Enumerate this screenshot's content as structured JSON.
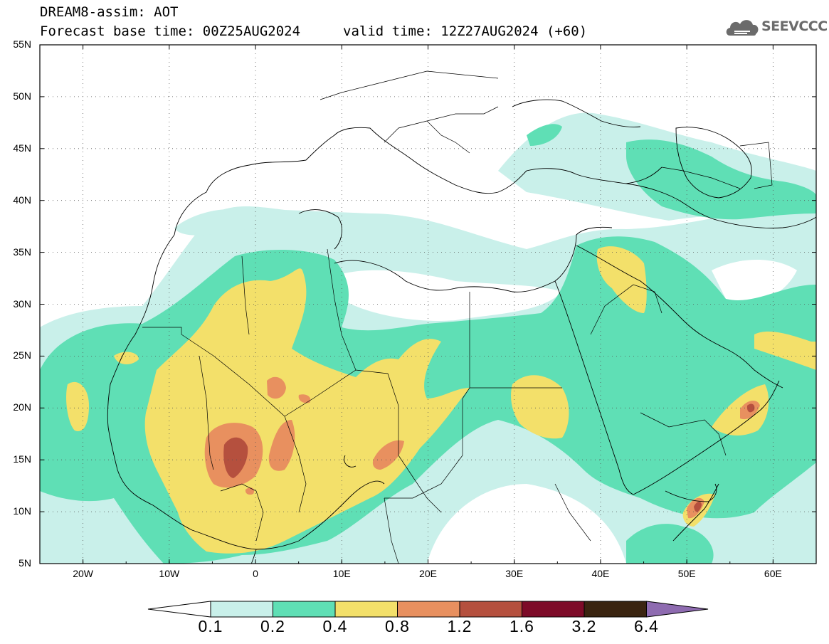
{
  "title": {
    "line1": "DREAM8-assim: AOT",
    "line2": "Forecast base time: 00Z25AUG2024",
    "line2b": "valid time: 12Z27AUG2024 (+60)"
  },
  "logo": {
    "text": "SEEVCCC",
    "icon": "cloud-icon"
  },
  "map": {
    "lon_range": [
      -25,
      65
    ],
    "lat_range": [
      5,
      55
    ],
    "lat_labels": [
      "55N",
      "50N",
      "45N",
      "40N",
      "35N",
      "30N",
      "25N",
      "20N",
      "15N",
      "10N",
      "5N"
    ],
    "lon_labels": [
      "20W",
      "10W",
      "0",
      "10E",
      "20E",
      "30E",
      "40E",
      "50E",
      "60E"
    ],
    "gridlines": "dotted"
  },
  "colorbar": {
    "labels": [
      "0.1",
      "0.2",
      "0.4",
      "0.8",
      "1.2",
      "1.6",
      "3.2",
      "6.4"
    ],
    "colors": [
      "#c9f0ea",
      "#5fdfb5",
      "#f3e06a",
      "#e8905f",
      "#b5503e",
      "#7d0b28",
      "#3a2410",
      "#8e6bb0"
    ],
    "under_color": "#ffffff"
  }
}
